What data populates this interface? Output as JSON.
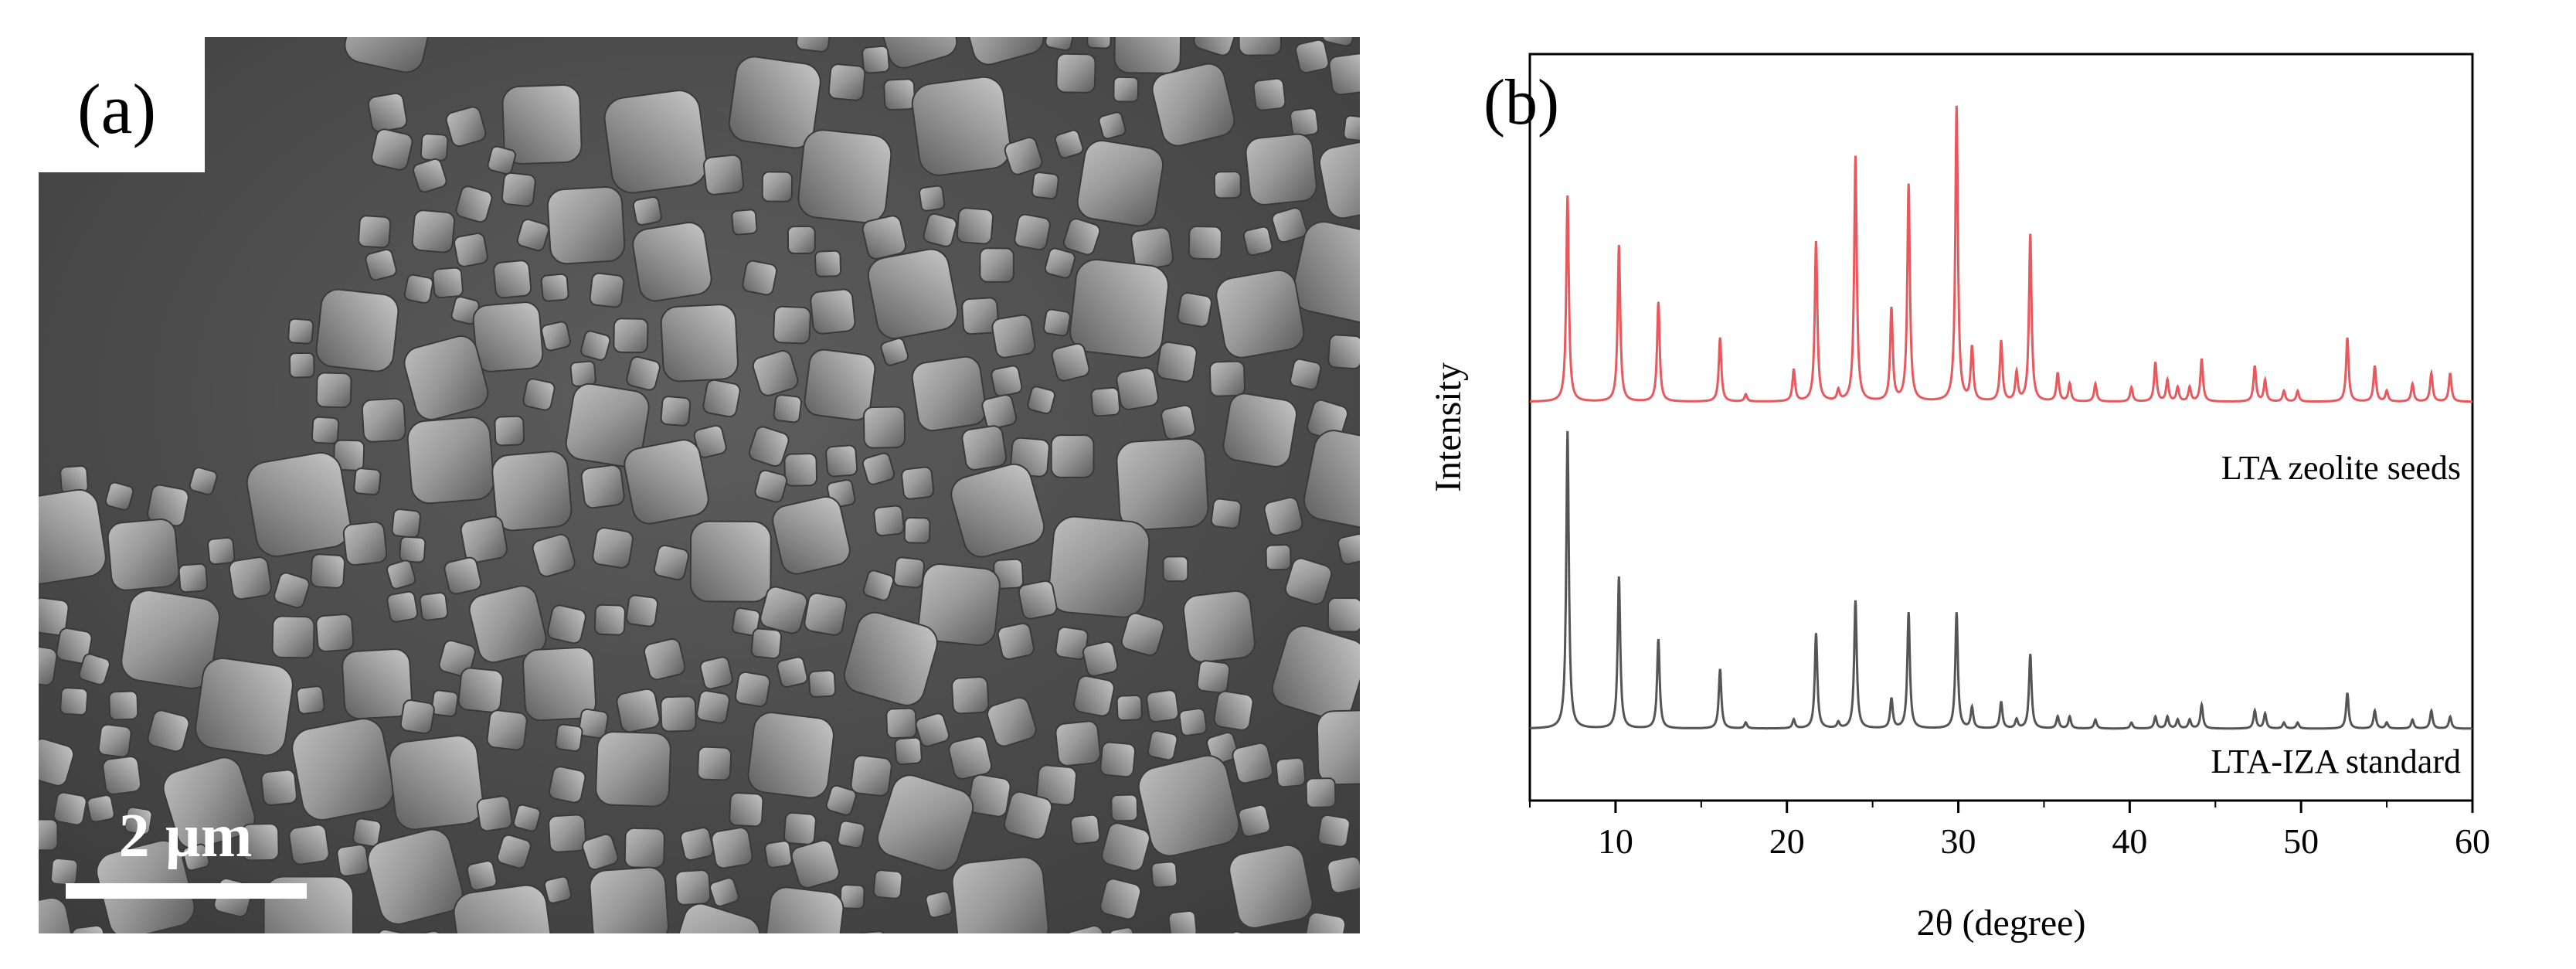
{
  "panel_a": {
    "label": "(a)",
    "scale_bar_label": "2 µm",
    "scale_bar_length_um": 2,
    "content": "SEM micrograph"
  },
  "panel_b": {
    "label": "(b)"
  },
  "colors": {
    "seeds": "#e8585c",
    "standard": "#555555",
    "axis": "#000000"
  },
  "chart_data": {
    "type": "line",
    "xlabel": "2θ (degree)",
    "ylabel": "Intensity",
    "xlim": [
      5,
      60
    ],
    "xticks": [
      10,
      20,
      30,
      40,
      50,
      60
    ],
    "yticks_shown": false,
    "grid": false,
    "series": [
      {
        "name": "LTA zeolite seeds",
        "color": "#e8585c",
        "baseline": 0.06,
        "peaks": [
          [
            7.2,
            0.58
          ],
          [
            10.2,
            0.44
          ],
          [
            12.5,
            0.28
          ],
          [
            16.1,
            0.18
          ],
          [
            17.6,
            0.02
          ],
          [
            20.4,
            0.09
          ],
          [
            21.7,
            0.45
          ],
          [
            23.0,
            0.03
          ],
          [
            24.0,
            0.69
          ],
          [
            26.1,
            0.26
          ],
          [
            27.1,
            0.61
          ],
          [
            29.9,
            0.83
          ],
          [
            30.8,
            0.15
          ],
          [
            32.5,
            0.17
          ],
          [
            33.4,
            0.08
          ],
          [
            34.2,
            0.47
          ],
          [
            35.8,
            0.08
          ],
          [
            36.5,
            0.05
          ],
          [
            38.0,
            0.05
          ],
          [
            40.1,
            0.04
          ],
          [
            41.5,
            0.11
          ],
          [
            42.2,
            0.06
          ],
          [
            42.8,
            0.04
          ],
          [
            43.5,
            0.04
          ],
          [
            44.2,
            0.12
          ],
          [
            47.3,
            0.1
          ],
          [
            47.9,
            0.06
          ],
          [
            49.0,
            0.03
          ],
          [
            49.8,
            0.03
          ],
          [
            52.7,
            0.18
          ],
          [
            54.3,
            0.1
          ],
          [
            55.0,
            0.03
          ],
          [
            56.5,
            0.05
          ],
          [
            57.6,
            0.08
          ],
          [
            58.7,
            0.08
          ]
        ]
      },
      {
        "name": "LTA-IZA standard",
        "color": "#555555",
        "baseline": 0.0,
        "peaks": [
          [
            7.2,
            1.0
          ],
          [
            10.2,
            0.51
          ],
          [
            12.5,
            0.3
          ],
          [
            16.1,
            0.2
          ],
          [
            17.6,
            0.02
          ],
          [
            20.4,
            0.03
          ],
          [
            21.7,
            0.32
          ],
          [
            23.0,
            0.02
          ],
          [
            24.0,
            0.43
          ],
          [
            26.1,
            0.1
          ],
          [
            27.1,
            0.39
          ],
          [
            29.9,
            0.39
          ],
          [
            30.8,
            0.07
          ],
          [
            32.5,
            0.09
          ],
          [
            33.4,
            0.03
          ],
          [
            34.2,
            0.25
          ],
          [
            35.8,
            0.04
          ],
          [
            36.5,
            0.04
          ],
          [
            38.0,
            0.03
          ],
          [
            40.1,
            0.02
          ],
          [
            41.5,
            0.04
          ],
          [
            42.2,
            0.04
          ],
          [
            42.8,
            0.03
          ],
          [
            43.5,
            0.03
          ],
          [
            44.2,
            0.08
          ],
          [
            47.3,
            0.06
          ],
          [
            47.9,
            0.05
          ],
          [
            49.0,
            0.02
          ],
          [
            49.8,
            0.02
          ],
          [
            52.7,
            0.12
          ],
          [
            54.3,
            0.06
          ],
          [
            55.0,
            0.02
          ],
          [
            56.5,
            0.03
          ],
          [
            57.6,
            0.06
          ],
          [
            58.7,
            0.04
          ]
        ]
      }
    ]
  }
}
